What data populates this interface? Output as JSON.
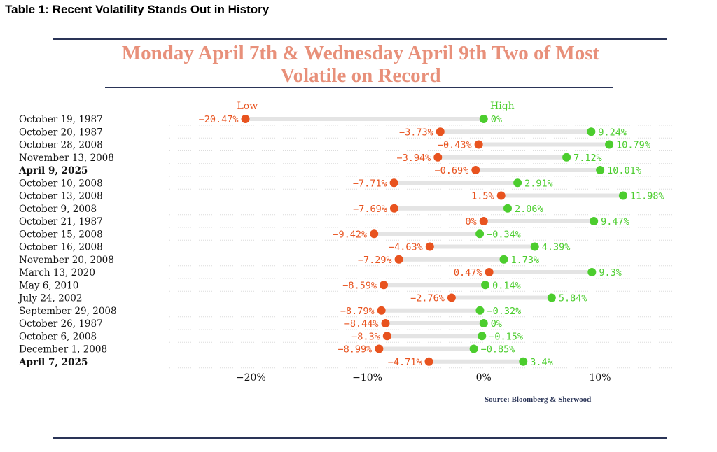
{
  "caption": "Table 1:  Recent Volatility Stands Out in History",
  "title_line1": "Monday April 7th & Wednesday April 9th Two of Most",
  "title_line2": "Volatile on Record",
  "source": "Source:  Bloomberg & Sherwood",
  "colors": {
    "low": "#e8531f",
    "high": "#4ccd2e",
    "title": "#e8907a",
    "rule": "#2a3457"
  },
  "chart_data": {
    "type": "dumbbell",
    "legend": {
      "low": "Low",
      "high": "High"
    },
    "x_ticks": [
      {
        "value": -20,
        "label": "−20%"
      },
      {
        "value": -10,
        "label": "−10%"
      },
      {
        "value": 0,
        "label": "0%"
      },
      {
        "value": 10,
        "label": "10%"
      }
    ],
    "xlim": [
      -27,
      16.5
    ],
    "rows": [
      {
        "label": "October 19, 1987",
        "low": -20.47,
        "high": 0,
        "low_label": "−20.47%",
        "high_label": "0%"
      },
      {
        "label": "October 20, 1987",
        "low": -3.73,
        "high": 9.24,
        "low_label": "−3.73%",
        "high_label": "9.24%"
      },
      {
        "label": "October 28, 2008",
        "low": -0.43,
        "high": 10.79,
        "low_label": "−0.43%",
        "high_label": "10.79%"
      },
      {
        "label": "November 13, 2008",
        "low": -3.94,
        "high": 7.12,
        "low_label": "−3.94%",
        "high_label": "7.12%"
      },
      {
        "label": "April 9, 2025",
        "low": -0.69,
        "high": 10.01,
        "low_label": "−0.69%",
        "high_label": "10.01%",
        "bold": true
      },
      {
        "label": "October 10, 2008",
        "low": -7.71,
        "high": 2.91,
        "low_label": "−7.71%",
        "high_label": "2.91%"
      },
      {
        "label": "October 13, 2008",
        "low": 1.5,
        "high": 11.98,
        "low_label": "1.5%",
        "high_label": "11.98%"
      },
      {
        "label": "October 9, 2008",
        "low": -7.69,
        "high": 2.06,
        "low_label": "−7.69%",
        "high_label": "2.06%"
      },
      {
        "label": "October 21, 1987",
        "low": 0,
        "high": 9.47,
        "low_label": "0%",
        "high_label": "9.47%"
      },
      {
        "label": "October 15, 2008",
        "low": -9.42,
        "high": -0.34,
        "low_label": "−9.42%",
        "high_label": "−0.34%"
      },
      {
        "label": "October 16, 2008",
        "low": -4.63,
        "high": 4.39,
        "low_label": "−4.63%",
        "high_label": "4.39%"
      },
      {
        "label": "November 20, 2008",
        "low": -7.29,
        "high": 1.73,
        "low_label": "−7.29%",
        "high_label": "1.73%"
      },
      {
        "label": "March 13, 2020",
        "low": 0.47,
        "high": 9.3,
        "low_label": "0.47%",
        "high_label": "9.3%"
      },
      {
        "label": "May 6, 2010",
        "low": -8.59,
        "high": 0.14,
        "low_label": "−8.59%",
        "high_label": "0.14%"
      },
      {
        "label": "July 24, 2002",
        "low": -2.76,
        "high": 5.84,
        "low_label": "−2.76%",
        "high_label": "5.84%"
      },
      {
        "label": "September 29, 2008",
        "low": -8.79,
        "high": -0.32,
        "low_label": "−8.79%",
        "high_label": "−0.32%"
      },
      {
        "label": "October 26, 1987",
        "low": -8.44,
        "high": 0,
        "low_label": "−8.44%",
        "high_label": "0%"
      },
      {
        "label": "October 6, 2008",
        "low": -8.3,
        "high": -0.15,
        "low_label": "−8.3%",
        "high_label": "−0.15%"
      },
      {
        "label": "December 1, 2008",
        "low": -8.99,
        "high": -0.85,
        "low_label": "−8.99%",
        "high_label": "−0.85%"
      },
      {
        "label": "April 7, 2025",
        "low": -4.71,
        "high": 3.4,
        "low_label": "−4.71%",
        "high_label": "3.4%",
        "bold": true
      }
    ]
  }
}
